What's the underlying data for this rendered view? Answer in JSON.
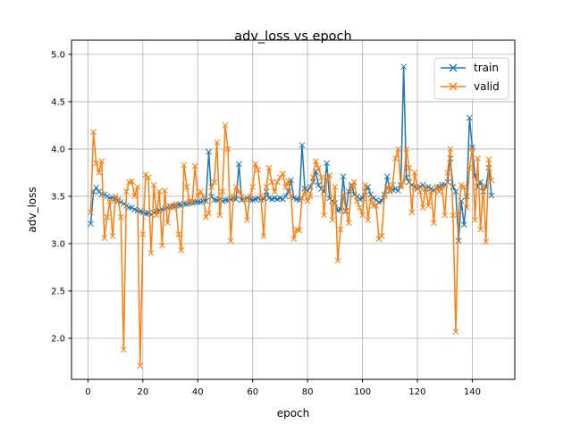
{
  "chart_data": {
    "type": "line",
    "title": "adv_loss vs epoch",
    "xlabel": "epoch",
    "ylabel": "adv_loss",
    "xlim": [
      -6,
      155.5
    ],
    "ylim": [
      1.566,
      5.15
    ],
    "xticks": [
      0,
      20,
      40,
      60,
      80,
      100,
      120,
      140
    ],
    "xtick_labels": [
      "0",
      "20",
      "40",
      "60",
      "80",
      "100",
      "120",
      "140"
    ],
    "yticks": [
      2.0,
      2.5,
      3.0,
      3.5,
      4.0,
      4.5,
      5.0
    ],
    "ytick_labels": [
      "2.0",
      "2.5",
      "3.0",
      "3.5",
      "4.0",
      "4.5",
      "5.0"
    ],
    "grid": true,
    "legend_position": "top-right",
    "x_start": 1,
    "series": [
      {
        "name": "train",
        "color": "#1f77b4",
        "marker": "x",
        "values": [
          3.21,
          3.55,
          3.59,
          3.55,
          3.52,
          3.52,
          3.5,
          3.48,
          3.48,
          3.47,
          3.45,
          3.44,
          3.42,
          3.4,
          3.38,
          3.38,
          3.36,
          3.35,
          3.34,
          3.33,
          3.32,
          3.32,
          3.31,
          3.33,
          3.34,
          3.35,
          3.36,
          3.37,
          3.38,
          3.39,
          3.4,
          3.4,
          3.41,
          3.41,
          3.42,
          3.42,
          3.43,
          3.43,
          3.44,
          3.44,
          3.44,
          3.45,
          3.45,
          3.97,
          3.5,
          3.46,
          3.46,
          3.47,
          3.45,
          3.46,
          3.46,
          3.47,
          3.48,
          3.47,
          3.84,
          3.46,
          3.47,
          3.48,
          3.47,
          3.46,
          3.47,
          3.48,
          3.46,
          3.47,
          3.55,
          3.48,
          3.47,
          3.48,
          3.47,
          3.48,
          3.47,
          3.5,
          3.55,
          3.67,
          3.48,
          3.47,
          3.46,
          4.04,
          3.58,
          3.56,
          3.6,
          3.65,
          3.76,
          3.62,
          3.58,
          3.55,
          3.85,
          3.48,
          3.45,
          3.43,
          3.35,
          3.36,
          3.71,
          3.34,
          3.55,
          3.62,
          3.52,
          3.5,
          3.47,
          3.48,
          3.55,
          3.6,
          3.52,
          3.48,
          3.46,
          3.44,
          3.45,
          3.52,
          3.71,
          3.56,
          3.57,
          3.58,
          3.56,
          3.62,
          4.87,
          3.7,
          3.65,
          3.62,
          3.6,
          3.58,
          3.6,
          3.62,
          3.58,
          3.6,
          3.58,
          3.56,
          3.6,
          3.6,
          3.62,
          3.62,
          3.65,
          3.9,
          3.6,
          3.55,
          3.03,
          3.45,
          3.2,
          3.5,
          4.33,
          4.02,
          3.72,
          3.6,
          3.65,
          3.55,
          3.6,
          3.8,
          3.51
        ]
      },
      {
        "name": "valid",
        "color": "#ff7f0e",
        "marker": "x",
        "values": [
          3.33,
          4.18,
          3.85,
          3.75,
          3.87,
          3.06,
          3.28,
          3.45,
          3.08,
          3.5,
          3.47,
          3.28,
          1.88,
          3.55,
          3.65,
          3.66,
          3.5,
          3.6,
          1.71,
          3.1,
          3.73,
          3.7,
          2.9,
          3.62,
          3.3,
          3.55,
          2.98,
          3.56,
          3.22,
          3.4,
          3.38,
          3.42,
          3.1,
          2.93,
          3.83,
          3.6,
          3.45,
          3.44,
          3.82,
          3.5,
          3.55,
          3.5,
          3.28,
          3.32,
          3.6,
          3.65,
          4.07,
          3.3,
          3.55,
          4.25,
          4.0,
          3.03,
          3.5,
          3.6,
          3.55,
          3.5,
          3.47,
          3.25,
          3.5,
          3.6,
          3.84,
          3.78,
          3.5,
          3.08,
          3.6,
          3.8,
          3.65,
          3.55,
          3.65,
          3.7,
          3.74,
          3.6,
          3.66,
          3.5,
          3.05,
          3.15,
          3.14,
          3.48,
          3.55,
          3.45,
          3.5,
          3.7,
          3.87,
          3.8,
          3.7,
          3.3,
          3.68,
          3.72,
          3.25,
          3.6,
          2.82,
          3.15,
          3.52,
          3.35,
          3.22,
          3.6,
          3.65,
          3.45,
          3.38,
          3.3,
          3.62,
          3.25,
          3.48,
          3.4,
          3.4,
          3.05,
          3.08,
          3.5,
          3.6,
          3.55,
          3.62,
          3.9,
          4.0,
          3.6,
          3.65,
          4.0,
          3.8,
          3.33,
          3.75,
          3.6,
          3.55,
          3.38,
          3.6,
          3.4,
          3.55,
          3.22,
          3.6,
          3.55,
          3.6,
          3.3,
          3.75,
          4.0,
          3.3,
          2.07,
          3.32,
          3.62,
          3.6,
          3.38,
          3.8,
          4.0,
          3.25,
          3.9,
          3.15,
          3.6,
          3.02,
          3.89,
          3.67
        ]
      }
    ]
  }
}
